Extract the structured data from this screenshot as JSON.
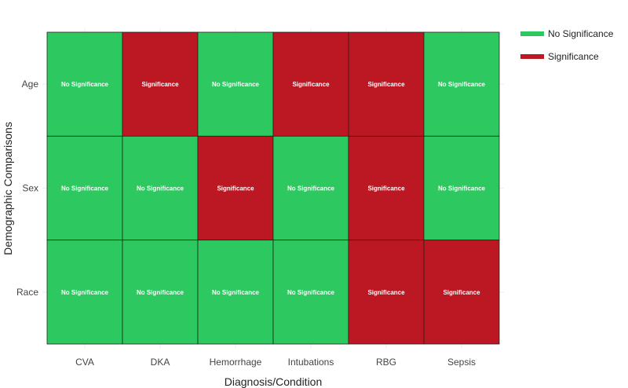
{
  "chart_data": {
    "type": "heatmap",
    "title": "",
    "xlabel": "Diagnosis/Condition",
    "ylabel": "Demographic Comparisons",
    "x_categories": [
      "CVA",
      "DKA",
      "Hemorrhage",
      "Intubations",
      "RBG",
      "Sepsis"
    ],
    "y_categories": [
      "Age",
      "Sex",
      "Race"
    ],
    "values": [
      [
        "No Significance",
        "Significance",
        "No Significance",
        "Significance",
        "Significance",
        "No Significance"
      ],
      [
        "No Significance",
        "No Significance",
        "Significance",
        "No Significance",
        "Significance",
        "No Significance"
      ],
      [
        "No Significance",
        "No Significance",
        "No Significance",
        "No Significance",
        "Significance",
        "Significance"
      ]
    ],
    "colors": {
      "No Significance": "#2dc860",
      "Significance": "#bc1823"
    },
    "legend": {
      "position": "top-right",
      "entries": [
        {
          "label": "No Significance",
          "color": "#2dc860"
        },
        {
          "label": "Significance",
          "color": "#bc1823"
        }
      ]
    },
    "grid": true
  }
}
